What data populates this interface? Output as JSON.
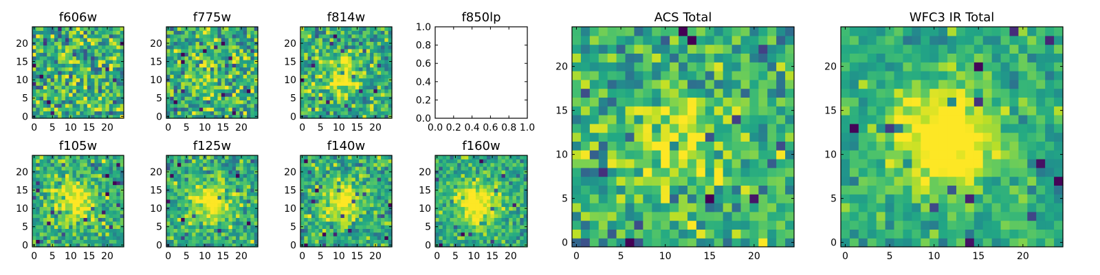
{
  "chart_data": {
    "type": "heatmap",
    "colormap": "viridis",
    "panels": [
      {
        "title": "f606w",
        "kind": "image",
        "extent": [
          -0.5,
          24.5
        ],
        "xticks": [
          0,
          5,
          10,
          15,
          20
        ],
        "yticks": [
          0,
          5,
          10,
          15,
          20
        ],
        "style": "noise",
        "peak": 0.08,
        "noise": 0.5,
        "seed": 11
      },
      {
        "title": "f775w",
        "kind": "image",
        "extent": [
          -0.5,
          24.5
        ],
        "xticks": [
          0,
          5,
          10,
          15,
          20
        ],
        "yticks": [
          0,
          5,
          10,
          15,
          20
        ],
        "style": "faint",
        "peak": 0.2,
        "noise": 0.45,
        "seed": 23
      },
      {
        "title": "f814w",
        "kind": "image",
        "extent": [
          -0.5,
          24.5
        ],
        "xticks": [
          0,
          5,
          10,
          15,
          20
        ],
        "yticks": [
          0,
          5,
          10,
          15,
          20
        ],
        "style": "source",
        "peak": 0.35,
        "noise": 0.4,
        "seed": 37
      },
      {
        "title": "f850lp",
        "kind": "empty",
        "xlim": [
          0.0,
          1.0
        ],
        "ylim": [
          0.0,
          1.0
        ],
        "xticks": [
          "0.0",
          "0.2",
          "0.4",
          "0.6",
          "0.8",
          "1.0"
        ],
        "yticks": [
          "0.0",
          "0.2",
          "0.4",
          "0.6",
          "0.8",
          "1.0"
        ]
      },
      {
        "title": "f105w",
        "kind": "image",
        "extent": [
          -0.5,
          24.5
        ],
        "xticks": [
          0,
          5,
          10,
          15,
          20
        ],
        "yticks": [
          0,
          5,
          10,
          15,
          20
        ],
        "style": "source",
        "peak": 0.45,
        "noise": 0.35,
        "seed": 41
      },
      {
        "title": "f125w",
        "kind": "image",
        "extent": [
          -0.5,
          24.5
        ],
        "xticks": [
          0,
          5,
          10,
          15,
          20
        ],
        "yticks": [
          0,
          5,
          10,
          15,
          20
        ],
        "style": "source",
        "peak": 0.45,
        "noise": 0.35,
        "seed": 53
      },
      {
        "title": "f140w",
        "kind": "image",
        "extent": [
          -0.5,
          24.5
        ],
        "xticks": [
          0,
          5,
          10,
          15,
          20
        ],
        "yticks": [
          0,
          5,
          10,
          15,
          20
        ],
        "style": "source",
        "peak": 0.45,
        "noise": 0.35,
        "seed": 67
      },
      {
        "title": "f160w",
        "kind": "image",
        "extent": [
          -0.5,
          24.5
        ],
        "xticks": [
          0,
          5,
          10,
          15,
          20
        ],
        "yticks": [
          0,
          5,
          10,
          15,
          20
        ],
        "style": "source",
        "peak": 0.5,
        "noise": 0.3,
        "seed": 79
      },
      {
        "title": "ACS Total",
        "kind": "image",
        "extent": [
          -0.5,
          24.5
        ],
        "xticks": [
          0,
          5,
          10,
          15,
          20
        ],
        "yticks": [
          0,
          5,
          10,
          15,
          20
        ],
        "style": "source",
        "peak": 0.3,
        "noise": 0.4,
        "seed": 97
      },
      {
        "title": "WFC3 IR Total",
        "kind": "image",
        "extent": [
          -0.5,
          24.5
        ],
        "xticks": [
          0,
          5,
          10,
          15,
          20
        ],
        "yticks": [
          0,
          5,
          10,
          15,
          20
        ],
        "style": "source",
        "peak": 0.6,
        "noise": 0.25,
        "seed": 131
      }
    ]
  }
}
